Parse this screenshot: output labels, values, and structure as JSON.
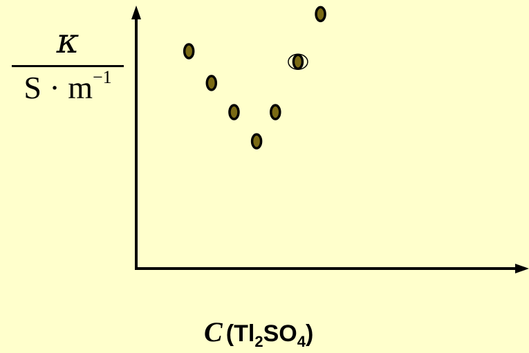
{
  "chart_data": {
    "type": "scatter",
    "xlabel": {
      "variable": "C",
      "formula": [
        "(Tl",
        "2",
        "SO",
        "4",
        ")"
      ]
    },
    "ylabel": {
      "numerator": "κ",
      "denominator": "S · m",
      "denominator_exponent": "−1"
    },
    "xlim": [
      0,
      10
    ],
    "ylim": [
      0,
      10
    ],
    "grid": false,
    "legend": false,
    "marker_color": "#7a6a14",
    "marker_edge_color": "#000000",
    "axis_color": "#000000",
    "background": "#ffffcc",
    "points": [
      {
        "x": 1.4,
        "y": 8.2
      },
      {
        "x": 2.0,
        "y": 7.0
      },
      {
        "x": 2.6,
        "y": 5.9
      },
      {
        "x": 3.2,
        "y": 4.8
      },
      {
        "x": 3.7,
        "y": 5.9
      },
      {
        "x": 4.3,
        "y": 7.8,
        "highlighted": true
      },
      {
        "x": 4.9,
        "y": 9.6
      }
    ]
  }
}
